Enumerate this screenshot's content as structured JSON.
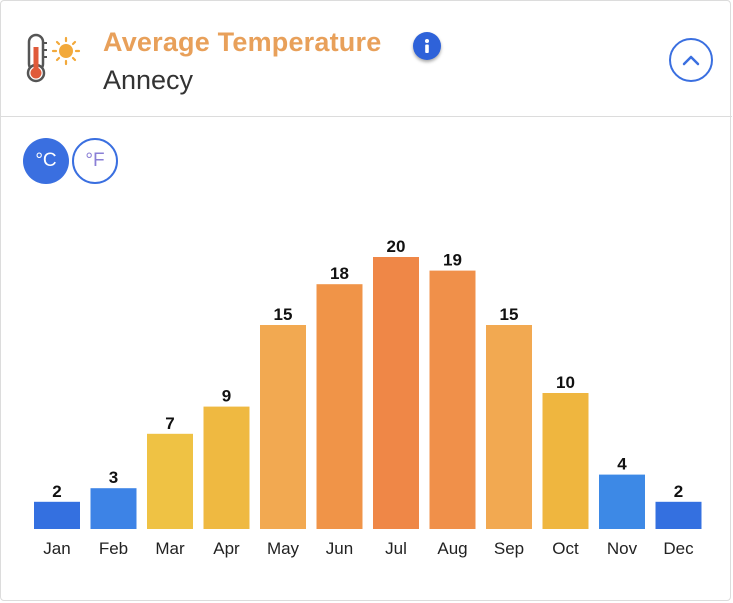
{
  "header": {
    "title": "Average Temperature",
    "subtitle": "Annecy",
    "info_icon": "info-icon",
    "collapse_icon": "chevron-up-icon",
    "weather_icon": "thermometer-sun-icon"
  },
  "units": {
    "celsius_label": "°C",
    "fahrenheit_label": "°F",
    "selected": "°C"
  },
  "colors": {
    "accent": "#3a6fe0",
    "title": "#e8a05a"
  },
  "chart_data": {
    "type": "bar",
    "title": "Average Temperature",
    "xlabel": "",
    "ylabel": "",
    "unit": "°C",
    "categories": [
      "Jan",
      "Feb",
      "Mar",
      "Apr",
      "May",
      "Jun",
      "Jul",
      "Aug",
      "Sep",
      "Oct",
      "Nov",
      "Dec"
    ],
    "values": [
      2,
      3,
      7,
      9,
      15,
      18,
      20,
      19,
      15,
      10,
      4,
      2
    ],
    "colors": [
      "#3470e0",
      "#3d83e6",
      "#efc244",
      "#efb941",
      "#f2a951",
      "#f09448",
      "#ef8747",
      "#f0904a",
      "#f2a951",
      "#efb63f",
      "#3d89e6",
      "#3470e0"
    ],
    "ylim": [
      0,
      20
    ],
    "grid": false,
    "legend": "none"
  }
}
